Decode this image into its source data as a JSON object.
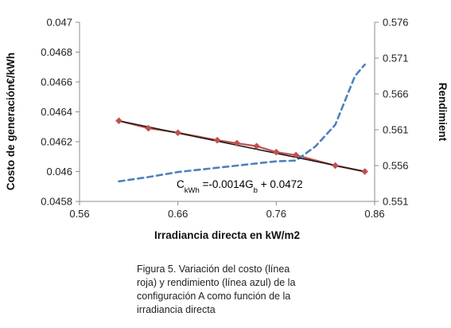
{
  "chart_data": {
    "type": "line",
    "xlabel": "Irradiancia directa en kW/m2",
    "ylabel": "Costo de generación€/kWh",
    "y2label": "Rendimient",
    "xlim": [
      0.56,
      0.86
    ],
    "ylim": [
      0.0458,
      0.047
    ],
    "y2lim": [
      0.551,
      0.576
    ],
    "x_ticks": [
      "0.56",
      "0.66",
      "0.76",
      "0.86"
    ],
    "y_ticks": [
      "0.0458",
      "0.046",
      "0.0462",
      "0.0464",
      "0.0466",
      "0.0468",
      "0.047"
    ],
    "y2_ticks": [
      "0.551",
      "0.556",
      "0.561",
      "0.566",
      "0.571",
      "0.576"
    ],
    "grid": false,
    "series": [
      {
        "axis": "left",
        "color": "#c0504d",
        "marker": "diamond",
        "points": [
          {
            "x": 0.6,
            "y": 0.04634
          },
          {
            "x": 0.63,
            "y": 0.04629
          },
          {
            "x": 0.66,
            "y": 0.04626
          },
          {
            "x": 0.7,
            "y": 0.04621
          },
          {
            "x": 0.72,
            "y": 0.04619
          },
          {
            "x": 0.74,
            "y": 0.04617
          },
          {
            "x": 0.76,
            "y": 0.04613
          },
          {
            "x": 0.78,
            "y": 0.04611
          },
          {
            "x": 0.82,
            "y": 0.04604
          },
          {
            "x": 0.85,
            "y": 0.046
          }
        ]
      },
      {
        "axis": "right",
        "color": "#4f81bd",
        "style": "dashed",
        "points": [
          {
            "x": 0.6,
            "y": 0.5538
          },
          {
            "x": 0.63,
            "y": 0.5544
          },
          {
            "x": 0.66,
            "y": 0.5551
          },
          {
            "x": 0.7,
            "y": 0.5557
          },
          {
            "x": 0.74,
            "y": 0.5563
          },
          {
            "x": 0.76,
            "y": 0.5566
          },
          {
            "x": 0.78,
            "y": 0.5567
          },
          {
            "x": 0.8,
            "y": 0.5587
          },
          {
            "x": 0.82,
            "y": 0.5617
          },
          {
            "x": 0.84,
            "y": 0.5685
          },
          {
            "x": 0.85,
            "y": 0.5701
          }
        ]
      }
    ],
    "trendline": {
      "color": "#1a1a1a",
      "x": [
        0.6,
        0.85
      ],
      "y": [
        0.04634,
        0.046
      ],
      "equation_parts": [
        "C",
        "kWh",
        " =-0.0014G",
        "b",
        " + 0.0472"
      ]
    }
  },
  "caption": "Figura 5. Variación del costo (línea\nroja) y rendimiento (línea azul) de la\nconfiguración A como función de la\nirradiancia directa"
}
